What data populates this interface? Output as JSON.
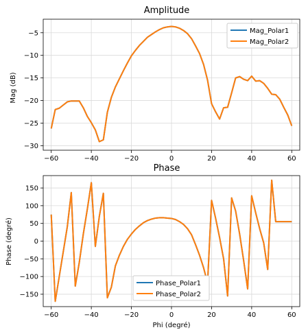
{
  "colors": {
    "series1": "#1f77b4",
    "series2": "#ff7f0e",
    "grid": "#d9d9d9",
    "axis": "#000000"
  },
  "chart_data": [
    {
      "type": "line",
      "title": "Amplitude",
      "xlabel": "",
      "ylabel": "Mag (dB)",
      "xlim": [
        -64,
        64
      ],
      "ylim": [
        -31,
        -2
      ],
      "xticks": [
        -60,
        -40,
        -20,
        0,
        20,
        40,
        60
      ],
      "yticks": [
        -5,
        -10,
        -15,
        -20,
        -25,
        -30
      ],
      "grid": true,
      "legend": "top-right",
      "series": [
        {
          "name": "Mag_Polar1",
          "x": [
            -60,
            -58,
            -56,
            -54,
            -52,
            -50,
            -48,
            -46,
            -44,
            -42,
            -40,
            -38,
            -36,
            -34,
            -32,
            -30,
            -28,
            -26,
            -24,
            -22,
            -20,
            -18,
            -16,
            -14,
            -12,
            -10,
            -8,
            -6,
            -4,
            -2,
            0,
            2,
            4,
            6,
            8,
            10,
            12,
            14,
            16,
            18,
            20,
            22,
            24,
            26,
            28,
            30,
            32,
            34,
            36,
            38,
            40,
            42,
            44,
            46,
            48,
            50,
            52,
            54,
            56,
            58,
            60
          ],
          "y": [
            -26.2,
            -22.0,
            -21.7,
            -21.0,
            -20.3,
            -20.1,
            -20.1,
            -20.1,
            -21.6,
            -23.5,
            -24.9,
            -26.5,
            -29.1,
            -28.7,
            -22.6,
            -19.3,
            -17.0,
            -15.2,
            -13.4,
            -11.7,
            -10.1,
            -8.9,
            -7.8,
            -6.9,
            -6.0,
            -5.4,
            -4.8,
            -4.3,
            -3.9,
            -3.7,
            -3.6,
            -3.7,
            -4.0,
            -4.5,
            -5.2,
            -6.3,
            -7.9,
            -9.6,
            -12.0,
            -15.5,
            -20.7,
            -22.5,
            -24.1,
            -21.6,
            -21.5,
            -18.3,
            -15.0,
            -14.7,
            -15.3,
            -15.6,
            -14.6,
            -15.7,
            -15.6,
            -16.2,
            -17.3,
            -18.6,
            -18.7,
            -19.7,
            -21.5,
            -23.2,
            -25.6
          ]
        },
        {
          "name": "Mag_Polar2",
          "x": [
            -60,
            -58,
            -56,
            -54,
            -52,
            -50,
            -48,
            -46,
            -44,
            -42,
            -40,
            -38,
            -36,
            -34,
            -32,
            -30,
            -28,
            -26,
            -24,
            -22,
            -20,
            -18,
            -16,
            -14,
            -12,
            -10,
            -8,
            -6,
            -4,
            -2,
            0,
            2,
            4,
            6,
            8,
            10,
            12,
            14,
            16,
            18,
            20,
            22,
            24,
            26,
            28,
            30,
            32,
            34,
            36,
            38,
            40,
            42,
            44,
            46,
            48,
            50,
            52,
            54,
            56,
            58,
            60
          ],
          "y": [
            -26.2,
            -22.0,
            -21.7,
            -21.0,
            -20.3,
            -20.1,
            -20.1,
            -20.1,
            -21.6,
            -23.5,
            -24.9,
            -26.5,
            -29.1,
            -28.7,
            -22.6,
            -19.3,
            -17.0,
            -15.2,
            -13.4,
            -11.7,
            -10.1,
            -8.9,
            -7.8,
            -6.9,
            -6.0,
            -5.4,
            -4.8,
            -4.3,
            -3.9,
            -3.7,
            -3.6,
            -3.7,
            -4.0,
            -4.5,
            -5.2,
            -6.3,
            -7.9,
            -9.6,
            -12.0,
            -15.5,
            -20.7,
            -22.5,
            -24.1,
            -21.6,
            -21.5,
            -18.3,
            -15.0,
            -14.7,
            -15.3,
            -15.6,
            -14.6,
            -15.7,
            -15.6,
            -16.2,
            -17.3,
            -18.6,
            -18.7,
            -19.7,
            -21.5,
            -23.2,
            -25.6
          ]
        }
      ]
    },
    {
      "type": "line",
      "title": "Phase",
      "xlabel": "Phi (degré)",
      "ylabel": "Phase (degré)",
      "xlim": [
        -64,
        64
      ],
      "ylim": [
        -185,
        185
      ],
      "xticks": [
        -60,
        -40,
        -20,
        0,
        20,
        40,
        60
      ],
      "yticks": [
        150,
        100,
        50,
        0,
        -50,
        -100,
        -150
      ],
      "grid": true,
      "legend": "lower-center",
      "series": [
        {
          "name": "Phase_Polar1",
          "x": [
            -60,
            -58,
            -56,
            -54,
            -52,
            -50,
            -48,
            -46,
            -44,
            -42,
            -40,
            -38,
            -36,
            -34,
            -32,
            -30,
            -28,
            -26,
            -24,
            -22,
            -20,
            -18,
            -16,
            -14,
            -12,
            -10,
            -8,
            -6,
            -4,
            -2,
            0,
            2,
            4,
            6,
            8,
            10,
            12,
            14,
            16,
            18,
            20,
            22,
            24,
            26,
            28,
            30,
            32,
            34,
            36,
            38,
            40,
            42,
            44,
            46,
            48,
            50,
            52,
            54,
            56,
            58,
            60
          ],
          "y": [
            75,
            -170,
            -100,
            -30,
            40,
            137,
            -127,
            -60,
            20,
            90,
            165,
            -15,
            70,
            135,
            -160,
            -130,
            -70,
            -40,
            -15,
            5,
            20,
            33,
            43,
            52,
            58,
            62,
            65,
            66,
            66,
            65,
            64,
            61,
            55,
            47,
            35,
            18,
            -10,
            -40,
            -75,
            -118,
            115,
            65,
            10,
            -50,
            -155,
            122,
            85,
            20,
            -55,
            -135,
            128,
            80,
            35,
            -5,
            -80,
            172,
            55,
            55,
            55,
            55,
            55
          ]
        },
        {
          "name": "Phase_Polar2",
          "x": [
            -60,
            -58,
            -56,
            -54,
            -52,
            -50,
            -48,
            -46,
            -44,
            -42,
            -40,
            -38,
            -36,
            -34,
            -32,
            -30,
            -28,
            -26,
            -24,
            -22,
            -20,
            -18,
            -16,
            -14,
            -12,
            -10,
            -8,
            -6,
            -4,
            -2,
            0,
            2,
            4,
            6,
            8,
            10,
            12,
            14,
            16,
            18,
            20,
            22,
            24,
            26,
            28,
            30,
            32,
            34,
            36,
            38,
            40,
            42,
            44,
            46,
            48,
            50,
            52,
            54,
            56,
            58,
            60
          ],
          "y": [
            75,
            -170,
            -100,
            -30,
            40,
            137,
            -127,
            -60,
            20,
            90,
            165,
            -15,
            70,
            135,
            -160,
            -130,
            -70,
            -40,
            -15,
            5,
            20,
            33,
            43,
            52,
            58,
            62,
            65,
            66,
            66,
            65,
            64,
            61,
            55,
            47,
            35,
            18,
            -10,
            -40,
            -75,
            -118,
            115,
            65,
            10,
            -50,
            -155,
            122,
            85,
            20,
            -55,
            -135,
            128,
            80,
            35,
            -5,
            -80,
            172,
            55,
            55,
            55,
            55,
            55
          ]
        }
      ]
    }
  ]
}
